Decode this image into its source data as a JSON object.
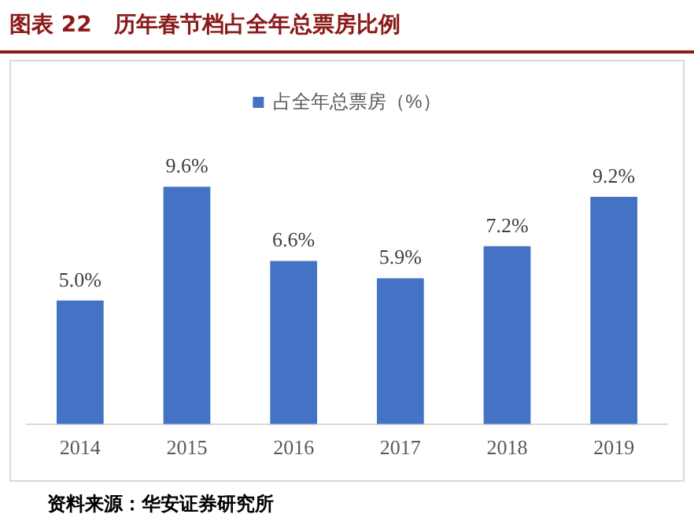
{
  "chart_data": {
    "type": "bar",
    "title": "图表 22　历年春节档占全年总票房比例",
    "categories": [
      "2014",
      "2015",
      "2016",
      "2017",
      "2018",
      "2019"
    ],
    "series": [
      {
        "name": "占全年总票房（%）",
        "color": "#4472c4",
        "values": [
          5.0,
          9.6,
          6.6,
          5.9,
          7.2,
          9.2
        ],
        "value_labels": [
          "5.0%",
          "9.6%",
          "6.6%",
          "5.9%",
          "7.2%",
          "9.2%"
        ]
      }
    ],
    "legend": "top",
    "grid": false,
    "tick_labels": "x",
    "annotations": [
      "资料来源：华安证券研究所"
    ]
  }
}
